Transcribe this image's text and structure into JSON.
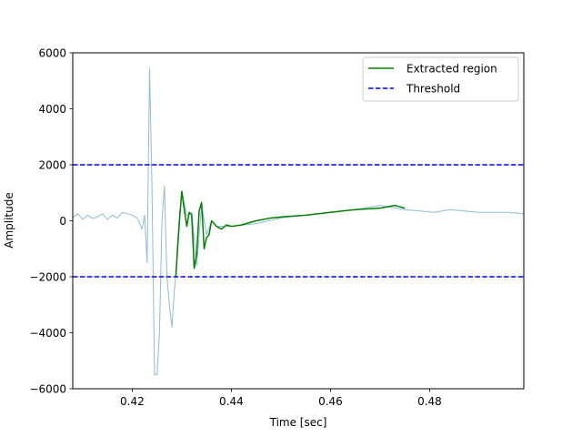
{
  "chart_data": {
    "type": "line",
    "xlabel": "Time [sec]",
    "ylabel": "Amplitude",
    "xlim": [
      0.408,
      0.499
    ],
    "ylim": [
      -6000,
      6000
    ],
    "xticks": [
      0.42,
      0.44,
      0.46,
      0.48
    ],
    "xtick_labels": [
      "0.42",
      "0.44",
      "0.46",
      "0.48"
    ],
    "yticks": [
      -6000,
      -4000,
      -2000,
      0,
      2000,
      4000,
      6000
    ],
    "ytick_labels": [
      "−6000",
      "−4000",
      "−2000",
      "0",
      "2000",
      "4000",
      "6000"
    ],
    "grid": false,
    "legend_position": "top-right",
    "legend": [
      {
        "label": "Extracted region",
        "style": "solid",
        "color": "#008000"
      },
      {
        "label": "Threshold",
        "style": "dashed",
        "color": "#0000ff"
      }
    ],
    "series": [
      {
        "name": "signal",
        "color": "#1f77b4",
        "opacity": 0.5,
        "x": [
          0.408,
          0.409,
          0.41,
          0.411,
          0.412,
          0.413,
          0.414,
          0.415,
          0.416,
          0.417,
          0.418,
          0.419,
          0.42,
          0.421,
          0.422,
          0.4225,
          0.423,
          0.4235,
          0.424,
          0.4245,
          0.425,
          0.4255,
          0.426,
          0.4265,
          0.427,
          0.4275,
          0.428,
          0.4285,
          0.429,
          0.43,
          0.431,
          0.432,
          0.433,
          0.434,
          0.435,
          0.436,
          0.437,
          0.44,
          0.445,
          0.45,
          0.455,
          0.46,
          0.465,
          0.47,
          0.475,
          0.478,
          0.481,
          0.484,
          0.487,
          0.49,
          0.493,
          0.496,
          0.499
        ],
        "y": [
          100,
          250,
          50,
          200,
          80,
          150,
          250,
          50,
          200,
          100,
          300,
          250,
          200,
          100,
          -300,
          200,
          -1500,
          5450,
          1000,
          -5500,
          -5500,
          -4000,
          0,
          1250,
          -2000,
          -3000,
          -3800,
          -2500,
          -1500,
          1050,
          200,
          300,
          -1600,
          550,
          -500,
          0,
          -200,
          -200,
          -100,
          100,
          200,
          300,
          400,
          550,
          400,
          350,
          300,
          400,
          350,
          300,
          300,
          300,
          250
        ]
      },
      {
        "name": "extracted",
        "color": "#008000",
        "x": [
          0.4288,
          0.4292,
          0.4296,
          0.43,
          0.4305,
          0.431,
          0.4315,
          0.432,
          0.4325,
          0.433,
          0.4335,
          0.434,
          0.4345,
          0.435,
          0.4355,
          0.436,
          0.437,
          0.438,
          0.439,
          0.44,
          0.442,
          0.445,
          0.448,
          0.451,
          0.455,
          0.46,
          0.465,
          0.47,
          0.473,
          0.475
        ],
        "y": [
          -2000,
          -800,
          200,
          1050,
          400,
          -200,
          300,
          200,
          -1700,
          -1200,
          350,
          650,
          -1000,
          -600,
          -500,
          0,
          -200,
          -300,
          -150,
          -200,
          -150,
          0,
          100,
          150,
          200,
          300,
          400,
          450,
          550,
          450
        ]
      },
      {
        "name": "threshold-upper",
        "color": "#0000ff",
        "dashed": true,
        "x": [
          0.408,
          0.499
        ],
        "y": [
          2000,
          2000
        ]
      },
      {
        "name": "threshold-lower",
        "color": "#0000ff",
        "dashed": true,
        "x": [
          0.408,
          0.499
        ],
        "y": [
          -2000,
          -2000
        ]
      }
    ]
  }
}
